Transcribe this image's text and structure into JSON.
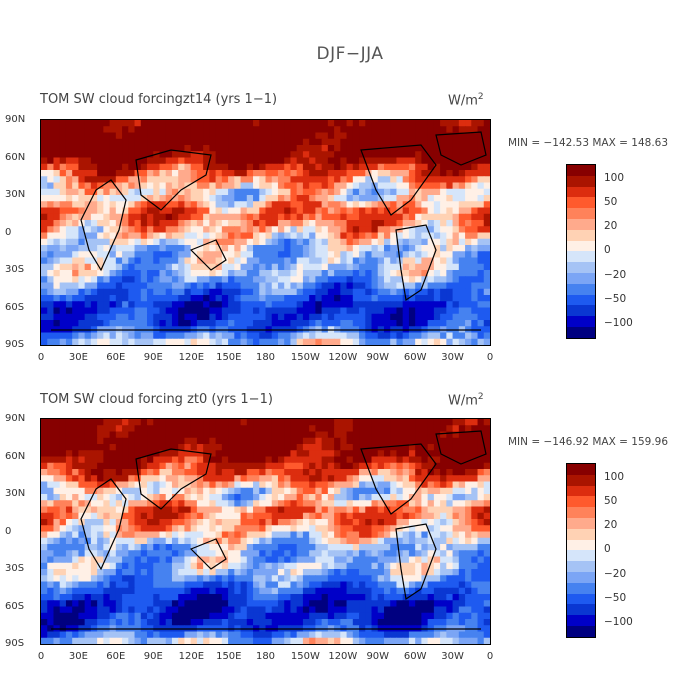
{
  "figure_title": "DJF−JJA",
  "colors": {
    "levels": [
      "#000080",
      "#0000c8",
      "#0a37d2",
      "#1e5af0",
      "#4682f0",
      "#7ba5f5",
      "#a5c3f5",
      "#d5e5fa",
      "#fff0e6",
      "#ffd2b4",
      "#ffaa8c",
      "#ff825a",
      "#ff5a2d",
      "#dc2d0f",
      "#aa1400",
      "#870000"
    ]
  },
  "chart_data": [
    {
      "type": "heatmap",
      "title": "TOM SW cloud forcingzt14 (yrs 1−1)",
      "units_prefix": "W/m",
      "units_exp": "2",
      "min_label": "MIN = −142.53",
      "max_label": "MAX = 148.63",
      "min": -142.53,
      "max": 148.63,
      "xticks": [
        "0",
        "30E",
        "60E",
        "90E",
        "120E",
        "150E",
        "180",
        "150W",
        "120W",
        "90W",
        "60W",
        "30W",
        "0"
      ],
      "yticks": [
        "90N",
        "60N",
        "30N",
        "0",
        "30S",
        "60S",
        "90S"
      ],
      "colorbar_labels": [
        "100",
        "50",
        "20",
        "0",
        "−20",
        "−50",
        "−100"
      ],
      "contour_levels": [
        -120,
        -100,
        -80,
        -60,
        -50,
        -40,
        -30,
        -20,
        -10,
        0,
        10,
        20,
        30,
        40,
        50,
        60,
        80,
        100,
        120
      ],
      "zonal_pattern_lat_deg": [
        90,
        75,
        60,
        45,
        30,
        15,
        0,
        -15,
        -30,
        -45,
        -60,
        -75,
        -90
      ],
      "zonal_pattern_value": [
        100,
        120,
        90,
        30,
        -10,
        40,
        10,
        -30,
        -20,
        -60,
        -100,
        -80,
        -10
      ]
    },
    {
      "type": "heatmap",
      "title": "TOM SW cloud forcing zt0 (yrs 1−1)",
      "units_prefix": "W/m",
      "units_exp": "2",
      "min_label": "MIN = −146.92",
      "max_label": "MAX = 159.96",
      "min": -146.92,
      "max": 159.96,
      "xticks": [
        "0",
        "30E",
        "60E",
        "90E",
        "120E",
        "150E",
        "180",
        "150W",
        "120W",
        "90W",
        "60W",
        "30W",
        "0"
      ],
      "yticks": [
        "90N",
        "60N",
        "30N",
        "0",
        "30S",
        "60S",
        "90S"
      ],
      "colorbar_labels": [
        "100",
        "50",
        "20",
        "0",
        "−20",
        "−50",
        "−100"
      ],
      "contour_levels": [
        -120,
        -100,
        -80,
        -60,
        -50,
        -40,
        -30,
        -20,
        -10,
        0,
        10,
        20,
        30,
        40,
        50,
        60,
        80,
        100,
        120
      ],
      "zonal_pattern_lat_deg": [
        90,
        75,
        60,
        45,
        30,
        15,
        0,
        -15,
        -30,
        -45,
        -60,
        -75,
        -90
      ],
      "zonal_pattern_value": [
        100,
        110,
        80,
        40,
        -20,
        40,
        10,
        -40,
        -20,
        -70,
        -110,
        -90,
        -10
      ]
    }
  ]
}
